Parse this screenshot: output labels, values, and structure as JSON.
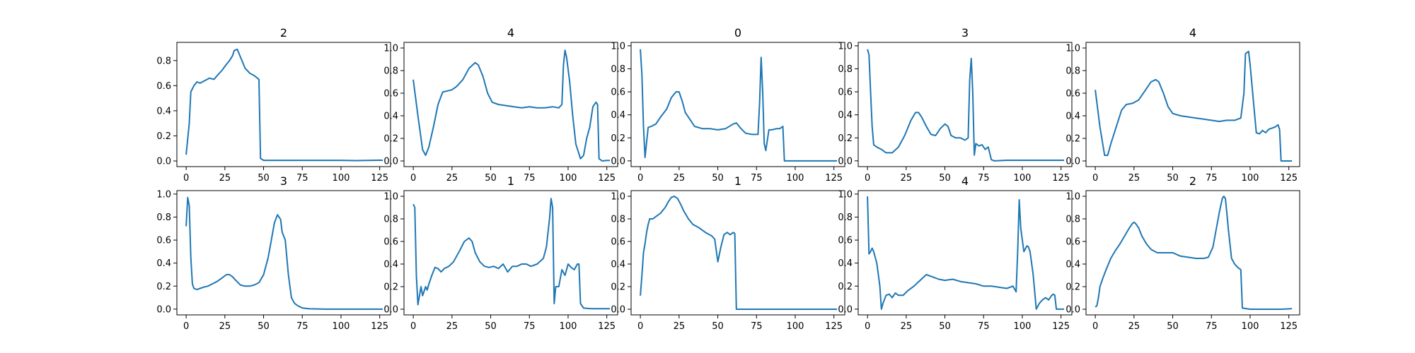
{
  "line_color": "#1f77b4",
  "chart_data": [
    {
      "type": "line",
      "title": "2",
      "xlim": [
        -6,
        132
      ],
      "ylim": [
        -0.045,
        0.945
      ],
      "xticks": [
        0,
        25,
        50,
        75,
        100,
        125
      ],
      "yticks": [
        0.0,
        0.2,
        0.4,
        0.6,
        0.8
      ],
      "ytick_labels": [
        "0.0",
        "0.2",
        "0.4",
        "0.6",
        "0.8"
      ],
      "x": [
        0,
        2,
        3,
        5,
        7,
        9,
        12,
        15,
        18,
        20,
        23,
        26,
        28,
        30,
        31,
        33,
        35,
        38,
        41,
        44,
        46,
        47,
        48,
        50,
        60,
        75,
        100,
        110,
        120,
        125,
        127
      ],
      "values": [
        0.05,
        0.3,
        0.55,
        0.6,
        0.63,
        0.62,
        0.64,
        0.66,
        0.65,
        0.68,
        0.72,
        0.77,
        0.8,
        0.84,
        0.88,
        0.89,
        0.83,
        0.74,
        0.7,
        0.68,
        0.66,
        0.65,
        0.02,
        0.005,
        0.005,
        0.005,
        0.005,
        0.003,
        0.005,
        0.006,
        0.005
      ]
    },
    {
      "type": "line",
      "title": "4",
      "xlim": [
        -6,
        132
      ],
      "ylim": [
        -0.05,
        1.05
      ],
      "xticks": [
        0,
        25,
        50,
        75,
        100,
        125
      ],
      "yticks": [
        0.0,
        0.2,
        0.4,
        0.6,
        0.8,
        1.0
      ],
      "ytick_labels": [
        "0.0",
        "0.2",
        "0.4",
        "0.6",
        "0.8",
        "1.0"
      ],
      "x": [
        0,
        3,
        6,
        8,
        10,
        13,
        16,
        19,
        22,
        25,
        28,
        32,
        36,
        40,
        42,
        45,
        48,
        51,
        55,
        60,
        65,
        70,
        75,
        80,
        85,
        90,
        94,
        96,
        97,
        98,
        99,
        101,
        103,
        105,
        108,
        110,
        112,
        114,
        116,
        118,
        119,
        120,
        122,
        125,
        127
      ],
      "values": [
        0.72,
        0.4,
        0.1,
        0.05,
        0.12,
        0.3,
        0.5,
        0.61,
        0.62,
        0.63,
        0.66,
        0.72,
        0.82,
        0.87,
        0.85,
        0.75,
        0.6,
        0.52,
        0.5,
        0.49,
        0.48,
        0.47,
        0.48,
        0.47,
        0.47,
        0.48,
        0.47,
        0.5,
        0.85,
        0.98,
        0.92,
        0.7,
        0.4,
        0.15,
        0.02,
        0.05,
        0.2,
        0.3,
        0.48,
        0.52,
        0.5,
        0.02,
        0.0,
        0.005,
        0.005
      ]
    },
    {
      "type": "line",
      "title": "0",
      "xlim": [
        -6,
        132
      ],
      "ylim": [
        -0.05,
        1.03
      ],
      "xticks": [
        0,
        25,
        50,
        75,
        100,
        125
      ],
      "yticks": [
        0.0,
        0.2,
        0.4,
        0.6,
        0.8,
        1.0
      ],
      "ytick_labels": [
        "0.0",
        "0.2",
        "0.4",
        "0.6",
        "0.8",
        "1.0"
      ],
      "x": [
        0,
        1,
        2,
        3,
        5,
        7,
        10,
        13,
        17,
        20,
        23,
        25,
        27,
        29,
        32,
        35,
        40,
        45,
        50,
        55,
        60,
        62,
        65,
        68,
        72,
        76,
        77,
        78,
        79,
        80,
        81,
        83,
        85,
        88,
        90,
        92,
        93,
        100,
        110,
        120,
        127
      ],
      "values": [
        0.97,
        0.75,
        0.3,
        0.03,
        0.29,
        0.3,
        0.32,
        0.38,
        0.45,
        0.55,
        0.6,
        0.6,
        0.52,
        0.42,
        0.36,
        0.3,
        0.28,
        0.28,
        0.27,
        0.28,
        0.32,
        0.33,
        0.28,
        0.24,
        0.23,
        0.23,
        0.5,
        0.9,
        0.6,
        0.15,
        0.09,
        0.27,
        0.27,
        0.28,
        0.28,
        0.3,
        0.0,
        0.0,
        0.0,
        0.0,
        0.0
      ]
    },
    {
      "type": "line",
      "title": "3",
      "xlim": [
        -6,
        132
      ],
      "ylim": [
        -0.05,
        1.03
      ],
      "xticks": [
        0,
        25,
        50,
        75,
        100,
        125
      ],
      "yticks": [
        0.0,
        0.2,
        0.4,
        0.6,
        0.8,
        1.0
      ],
      "ytick_labels": [
        "0.0",
        "0.2",
        "0.4",
        "0.6",
        "0.8",
        "1.0"
      ],
      "x": [
        0,
        1,
        2,
        3,
        4,
        6,
        9,
        12,
        16,
        20,
        24,
        28,
        31,
        33,
        35,
        38,
        41,
        44,
        47,
        50,
        52,
        54,
        57,
        60,
        63,
        65,
        66,
        67,
        68,
        69,
        70,
        72,
        74,
        76,
        78,
        80,
        82,
        90,
        100,
        110,
        120,
        127
      ],
      "values": [
        0.97,
        0.92,
        0.6,
        0.3,
        0.14,
        0.12,
        0.1,
        0.07,
        0.07,
        0.12,
        0.22,
        0.35,
        0.42,
        0.42,
        0.38,
        0.3,
        0.23,
        0.22,
        0.28,
        0.32,
        0.3,
        0.22,
        0.2,
        0.2,
        0.18,
        0.2,
        0.7,
        0.89,
        0.6,
        0.05,
        0.15,
        0.13,
        0.14,
        0.1,
        0.12,
        0.01,
        0.0,
        0.005,
        0.005,
        0.005,
        0.005,
        0.005
      ]
    },
    {
      "type": "line",
      "title": "4",
      "xlim": [
        -6,
        132
      ],
      "ylim": [
        -0.05,
        1.05
      ],
      "xticks": [
        0,
        25,
        50,
        75,
        100,
        125
      ],
      "yticks": [
        0.0,
        0.2,
        0.4,
        0.6,
        0.8,
        1.0
      ],
      "ytick_labels": [
        "0.0",
        "0.2",
        "0.4",
        "0.6",
        "0.8",
        "1.0"
      ],
      "x": [
        0,
        3,
        6,
        8,
        10,
        13,
        17,
        20,
        24,
        28,
        32,
        36,
        39,
        41,
        44,
        47,
        50,
        55,
        60,
        65,
        70,
        75,
        80,
        85,
        90,
        94,
        96,
        97,
        99,
        100,
        102,
        104,
        106,
        108,
        110,
        112,
        114,
        116,
        118,
        119,
        120,
        123,
        127
      ],
      "values": [
        0.63,
        0.3,
        0.05,
        0.05,
        0.15,
        0.28,
        0.45,
        0.5,
        0.51,
        0.54,
        0.62,
        0.7,
        0.72,
        0.7,
        0.6,
        0.48,
        0.42,
        0.4,
        0.39,
        0.38,
        0.37,
        0.36,
        0.35,
        0.36,
        0.36,
        0.38,
        0.6,
        0.95,
        0.97,
        0.85,
        0.55,
        0.25,
        0.24,
        0.27,
        0.25,
        0.28,
        0.29,
        0.3,
        0.32,
        0.28,
        0.0,
        0.0,
        0.0
      ]
    },
    {
      "type": "line",
      "title": "3",
      "xlim": [
        -6,
        132
      ],
      "ylim": [
        -0.05,
        1.03
      ],
      "xticks": [
        0,
        25,
        50,
        75,
        100,
        125
      ],
      "yticks": [
        0.0,
        0.2,
        0.4,
        0.6,
        0.8,
        1.0
      ],
      "ytick_labels": [
        "0.0",
        "0.2",
        "0.4",
        "0.6",
        "0.8",
        "1.0"
      ],
      "x": [
        0,
        1,
        2,
        3,
        4,
        5,
        7,
        9,
        11,
        14,
        17,
        20,
        23,
        26,
        28,
        30,
        32,
        35,
        38,
        41,
        44,
        47,
        50,
        53,
        55,
        57,
        59,
        61,
        62,
        64,
        66,
        68,
        70,
        72,
        75,
        78,
        80,
        90,
        100,
        110,
        120,
        127
      ],
      "values": [
        0.72,
        0.97,
        0.9,
        0.45,
        0.22,
        0.18,
        0.17,
        0.18,
        0.19,
        0.2,
        0.22,
        0.24,
        0.27,
        0.3,
        0.3,
        0.28,
        0.25,
        0.21,
        0.2,
        0.2,
        0.21,
        0.23,
        0.3,
        0.45,
        0.6,
        0.75,
        0.82,
        0.78,
        0.67,
        0.6,
        0.3,
        0.1,
        0.05,
        0.03,
        0.01,
        0.005,
        0.003,
        0.0,
        0.0,
        0.0,
        0.0,
        0.0
      ]
    },
    {
      "type": "line",
      "title": "1",
      "xlim": [
        -6,
        132
      ],
      "ylim": [
        -0.05,
        1.05
      ],
      "xticks": [
        0,
        25,
        50,
        75,
        100,
        125
      ],
      "yticks": [
        0.0,
        0.2,
        0.4,
        0.6,
        0.8,
        1.0
      ],
      "ytick_labels": [
        "0.0",
        "0.2",
        "0.4",
        "0.6",
        "0.8",
        "1.0"
      ],
      "x": [
        0,
        1,
        2,
        3,
        4,
        5,
        6,
        8,
        9,
        10,
        12,
        14,
        16,
        18,
        20,
        23,
        26,
        30,
        33,
        36,
        38,
        40,
        43,
        46,
        49,
        52,
        55,
        58,
        61,
        64,
        67,
        70,
        73,
        76,
        80,
        84,
        86,
        88,
        89,
        90,
        91,
        92,
        94,
        96,
        98,
        100,
        102,
        104,
        106,
        107,
        108,
        109,
        110,
        115,
        120,
        127
      ],
      "values": [
        0.93,
        0.9,
        0.3,
        0.04,
        0.12,
        0.2,
        0.12,
        0.2,
        0.17,
        0.22,
        0.3,
        0.37,
        0.36,
        0.33,
        0.36,
        0.38,
        0.42,
        0.52,
        0.6,
        0.63,
        0.6,
        0.5,
        0.42,
        0.38,
        0.37,
        0.38,
        0.36,
        0.4,
        0.33,
        0.38,
        0.38,
        0.4,
        0.4,
        0.38,
        0.4,
        0.45,
        0.55,
        0.8,
        0.98,
        0.9,
        0.05,
        0.2,
        0.2,
        0.35,
        0.3,
        0.4,
        0.37,
        0.35,
        0.4,
        0.4,
        0.05,
        0.03,
        0.01,
        0.005,
        0.005,
        0.005
      ]
    },
    {
      "type": "line",
      "title": "1",
      "xlim": [
        -6,
        132
      ],
      "ylim": [
        -0.05,
        1.05
      ],
      "xticks": [
        0,
        25,
        50,
        75,
        100,
        125
      ],
      "yticks": [
        0.0,
        0.2,
        0.4,
        0.6,
        0.8,
        1.0
      ],
      "ytick_labels": [
        "0.0",
        "0.2",
        "0.4",
        "0.6",
        "0.8",
        "1.0"
      ],
      "x": [
        0,
        1,
        2,
        3,
        4,
        5,
        6,
        8,
        10,
        13,
        16,
        18,
        20,
        22,
        24,
        26,
        28,
        31,
        34,
        38,
        42,
        46,
        48,
        50,
        52,
        54,
        56,
        58,
        60,
        61,
        62,
        70,
        80,
        90,
        100,
        110,
        120,
        127
      ],
      "values": [
        0.12,
        0.3,
        0.5,
        0.58,
        0.68,
        0.75,
        0.8,
        0.8,
        0.82,
        0.85,
        0.9,
        0.95,
        0.99,
        1.0,
        0.98,
        0.93,
        0.87,
        0.8,
        0.75,
        0.72,
        0.68,
        0.65,
        0.62,
        0.42,
        0.55,
        0.66,
        0.68,
        0.66,
        0.68,
        0.67,
        0.0,
        0.0,
        0.0,
        0.0,
        0.0,
        0.0,
        0.0,
        0.0
      ]
    },
    {
      "type": "line",
      "title": "4",
      "xlim": [
        -6,
        132
      ],
      "ylim": [
        -0.05,
        1.03
      ],
      "xticks": [
        0,
        25,
        50,
        75,
        100,
        125
      ],
      "yticks": [
        0.0,
        0.2,
        0.4,
        0.6,
        0.8,
        1.0
      ],
      "ytick_labels": [
        "0.0",
        "0.2",
        "0.4",
        "0.6",
        "0.8",
        "1.0"
      ],
      "x": [
        0,
        1,
        2,
        3,
        4,
        6,
        8,
        9,
        10,
        12,
        14,
        16,
        18,
        20,
        23,
        26,
        30,
        34,
        38,
        42,
        46,
        50,
        55,
        60,
        65,
        70,
        75,
        80,
        85,
        90,
        94,
        96,
        97,
        98,
        99,
        101,
        103,
        104,
        105,
        107,
        109,
        111,
        113,
        115,
        117,
        119,
        120,
        121,
        122,
        125,
        127
      ],
      "values": [
        0.98,
        0.48,
        0.5,
        0.53,
        0.5,
        0.4,
        0.2,
        0.0,
        0.05,
        0.12,
        0.13,
        0.1,
        0.14,
        0.12,
        0.12,
        0.16,
        0.2,
        0.25,
        0.3,
        0.28,
        0.26,
        0.25,
        0.26,
        0.24,
        0.23,
        0.22,
        0.2,
        0.2,
        0.19,
        0.18,
        0.2,
        0.15,
        0.5,
        0.95,
        0.7,
        0.5,
        0.55,
        0.54,
        0.5,
        0.3,
        0.0,
        0.05,
        0.08,
        0.1,
        0.08,
        0.12,
        0.13,
        0.12,
        0.0,
        0.0,
        0.0
      ]
    },
    {
      "type": "line",
      "title": "2",
      "xlim": [
        -6,
        132
      ],
      "ylim": [
        -0.05,
        1.05
      ],
      "xticks": [
        0,
        25,
        50,
        75,
        100,
        125
      ],
      "yticks": [
        0.0,
        0.2,
        0.4,
        0.6,
        0.8,
        1.0
      ],
      "ytick_labels": [
        "0.0",
        "0.2",
        "0.4",
        "0.6",
        "0.8",
        "1.0"
      ],
      "x": [
        0,
        1,
        2,
        3,
        5,
        7,
        10,
        13,
        16,
        19,
        22,
        24,
        25,
        26,
        28,
        30,
        33,
        36,
        40,
        45,
        50,
        55,
        60,
        65,
        70,
        73,
        76,
        78,
        80,
        82,
        83,
        84,
        85,
        86,
        88,
        90,
        92,
        94,
        95,
        100,
        110,
        120,
        127
      ],
      "values": [
        0.02,
        0.03,
        0.1,
        0.2,
        0.28,
        0.35,
        0.45,
        0.52,
        0.58,
        0.65,
        0.72,
        0.76,
        0.77,
        0.76,
        0.72,
        0.65,
        0.58,
        0.53,
        0.5,
        0.5,
        0.5,
        0.47,
        0.46,
        0.45,
        0.45,
        0.46,
        0.55,
        0.7,
        0.85,
        0.98,
        1.0,
        0.98,
        0.85,
        0.7,
        0.45,
        0.4,
        0.37,
        0.35,
        0.01,
        0.0,
        0.0,
        0.0,
        0.005
      ]
    }
  ]
}
